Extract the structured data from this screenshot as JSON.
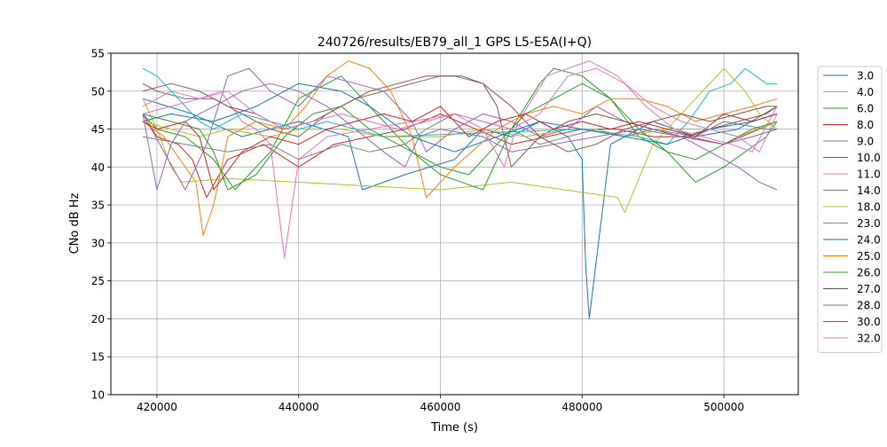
{
  "chart_data": {
    "type": "line",
    "title": "240726/results/EB79_all_1 GPS L5-E5A(I+Q)",
    "xlabel": "Time (s)",
    "ylabel": "CNo dB Hz",
    "xlim": [
      413500,
      510500
    ],
    "ylim": [
      10,
      55
    ],
    "xticks": [
      420000,
      440000,
      460000,
      480000,
      500000
    ],
    "yticks": [
      10,
      15,
      20,
      25,
      30,
      35,
      40,
      45,
      50,
      55
    ],
    "grid": true,
    "legend_position": "right",
    "series": [
      {
        "name": "3.0",
        "color": "#1f77b4",
        "x": [
          418000,
          425000,
          432000,
          440000,
          447000,
          449000,
          455000,
          462000,
          466000,
          470000,
          474000,
          478000,
          480000,
          480500,
          481000,
          484000,
          490000,
          496000,
          502000,
          507500
        ],
        "values": [
          49,
          47,
          44,
          46,
          44,
          37,
          39,
          41,
          45,
          44,
          46,
          44,
          41,
          27,
          20,
          43,
          46,
          44,
          45,
          48
        ]
      },
      {
        "name": "4.0",
        "color": "#bcbd22",
        "x": [
          418000,
          420000,
          422000,
          423500,
          430000,
          460000,
          470000,
          485000,
          486000,
          490000,
          496000,
          500000,
          503000,
          505000,
          507500
        ],
        "values": [
          49,
          45,
          40,
          38,
          38.5,
          37,
          38,
          36,
          34,
          43,
          49,
          53,
          50,
          47,
          45
        ]
      },
      {
        "name": "6.0",
        "color": "#2ca02c",
        "x": [
          418000,
          420000,
          424000,
          428000,
          431000,
          436000,
          440000,
          446000,
          451000,
          456000,
          460000,
          466000,
          470000,
          474000,
          476000,
          480000,
          484000,
          488000,
          492000,
          496000,
          500000,
          506000,
          507500
        ],
        "values": [
          47,
          45,
          44,
          41,
          37,
          42,
          49,
          52,
          47,
          42,
          39,
          37,
          45,
          51,
          53,
          52,
          49,
          44,
          42,
          38,
          40,
          44,
          46
        ]
      },
      {
        "name": "8.0",
        "color": "#d62728",
        "x": [
          418000,
          420000,
          423000,
          425000,
          427000,
          430000,
          435000,
          440000,
          445000,
          450000,
          455000,
          460000,
          465000,
          470000,
          475000,
          480000,
          485000,
          490000,
          495000,
          500000,
          505000,
          507500
        ],
        "values": [
          47,
          44,
          43,
          41,
          36,
          41,
          43,
          40,
          43,
          44,
          45,
          47,
          45,
          43,
          44,
          45,
          45,
          44,
          44,
          43,
          45,
          46
        ]
      },
      {
        "name": "9.0",
        "color": "#9467bd",
        "x": [
          418000,
          421000,
          424000,
          427000,
          430000,
          433000,
          436000,
          440000,
          444000,
          448000,
          452000,
          456000,
          458000,
          462000,
          466000,
          470000,
          474000,
          478000,
          482000,
          486000,
          490000,
          494000,
          498000,
          502000,
          505000,
          507500
        ],
        "values": [
          47,
          42,
          37,
          43,
          52,
          53,
          50,
          48,
          52,
          51,
          50,
          46,
          42,
          45,
          47,
          46,
          44,
          45,
          48,
          46,
          45,
          44,
          42,
          40,
          38,
          37
        ]
      },
      {
        "name": "10.0",
        "color": "#8c564b",
        "x": [
          418000,
          420000,
          424000,
          428000,
          432000,
          436000,
          440000,
          444000,
          448000,
          452000,
          456000,
          460000,
          463000,
          466000,
          468000,
          470000,
          474000,
          478000,
          482000,
          486000,
          490000,
          494000,
          498000,
          502000,
          506000,
          507500
        ],
        "values": [
          51,
          50,
          49,
          49,
          47,
          45,
          44,
          47,
          49,
          50,
          51,
          52,
          52,
          51,
          48,
          40,
          44,
          46,
          47,
          46,
          45,
          44,
          45,
          46,
          47,
          48
        ]
      },
      {
        "name": "11.0",
        "color": "#e377c2",
        "x": [
          418000,
          422000,
          426000,
          429000,
          432000,
          434000,
          436000,
          438000,
          440000,
          444000,
          450000,
          456000,
          462000,
          466000,
          469000,
          471000,
          475000,
          478000,
          481000,
          485000,
          489000,
          493000,
          497000,
          501000,
          504000,
          507500
        ],
        "values": [
          48,
          50,
          49,
          50,
          46,
          45,
          43,
          28,
          41,
          44,
          45,
          46,
          47,
          45,
          40,
          46,
          52,
          53,
          54,
          52,
          48,
          45,
          44,
          43,
          42,
          48
        ]
      },
      {
        "name": "14.0",
        "color": "#7f7f7f",
        "x": [
          418000,
          424000,
          430000,
          436000,
          440000,
          446000,
          450000,
          455000,
          458000,
          462000,
          466000,
          470000,
          474000,
          478000,
          482000,
          486000,
          490000,
          496000,
          500000,
          506000,
          507500
        ],
        "values": [
          44,
          43,
          42,
          43,
          41,
          43,
          42,
          43,
          45,
          47,
          46,
          45,
          43,
          44,
          45,
          44,
          45,
          44,
          46,
          45,
          45
        ]
      },
      {
        "name": "18.0",
        "color": "#bcbd22",
        "x": [
          418000,
          422000,
          426000,
          430000,
          436000,
          440000,
          446000,
          452000,
          460000,
          466000,
          472000,
          478000,
          482000,
          486000,
          492000,
          498000,
          502000,
          507500
        ],
        "values": [
          46,
          45,
          44,
          45,
          44,
          45,
          45,
          44,
          44,
          45,
          44,
          45,
          45,
          44,
          45,
          45,
          44,
          46
        ]
      },
      {
        "name": "23.0",
        "color": "#17becf",
        "x": [
          418000,
          420000,
          422000,
          424000,
          426000,
          428000,
          432000,
          436000,
          440000,
          444000,
          448000,
          452000,
          480000,
          488000,
          492000,
          495000,
          498000,
          501000,
          503000,
          506000,
          507500
        ],
        "values": [
          53,
          52,
          50,
          48,
          46,
          45,
          47,
          46,
          45,
          46,
          45,
          44,
          45,
          44,
          43,
          46,
          50,
          51,
          53,
          51,
          51
        ]
      },
      {
        "name": "24.0",
        "color": "#1f77b4",
        "x": [
          418000,
          422000,
          428000,
          434000,
          440000,
          446000,
          450000,
          456000,
          462000,
          468000,
          474000,
          480000,
          486000,
          492000,
          498000,
          504000,
          507500
        ],
        "values": [
          46,
          47,
          46,
          48,
          51,
          50,
          48,
          44,
          42,
          44,
          46,
          45,
          44,
          43,
          45,
          46,
          47
        ]
      },
      {
        "name": "25.0",
        "color": "#ff7f0e",
        "x": [
          418000,
          421000,
          424000,
          425500,
          426500,
          428000,
          430000,
          434000,
          438000,
          441000,
          444000,
          447000,
          450000,
          453000,
          456000,
          458000,
          462000,
          468000,
          472000,
          476000,
          480000,
          484000,
          488000,
          492000,
          496000,
          500000,
          504000,
          507500
        ],
        "values": [
          46,
          44,
          40,
          38,
          31,
          35,
          44,
          46,
          45,
          48,
          52,
          54,
          53,
          50,
          44,
          36,
          40,
          45,
          47,
          48,
          47,
          49,
          49,
          48,
          46,
          47,
          48,
          49
        ]
      },
      {
        "name": "26.0",
        "color": "#2ca02c",
        "x": [
          418000,
          422000,
          426000,
          428000,
          430000,
          434000,
          438000,
          442000,
          446000,
          450000,
          456000,
          460000,
          464000,
          468000,
          472000,
          476000,
          480000,
          484000,
          488000,
          492000,
          496000,
          500000,
          504000,
          507500
        ],
        "values": [
          47,
          46,
          45,
          42,
          37,
          39,
          44,
          47,
          48,
          45,
          42,
          40,
          39,
          43,
          47,
          49,
          51,
          49,
          45,
          42,
          41,
          43,
          45,
          46
        ]
      },
      {
        "name": "27.0",
        "color": "#d62728",
        "x": [
          418000,
          420000,
          424000,
          426000,
          428000,
          432000,
          436000,
          440000,
          444000,
          448000,
          452000,
          456000,
          460000,
          464000,
          468000,
          472000,
          476000,
          480000,
          484000,
          488000,
          492000,
          496000,
          500000,
          504000,
          507500
        ],
        "values": [
          46,
          45,
          46,
          44,
          37,
          42,
          44,
          43,
          45,
          46,
          47,
          46,
          48,
          44,
          46,
          47,
          45,
          46,
          45,
          46,
          45,
          44,
          47,
          46,
          47
        ]
      },
      {
        "name": "28.0",
        "color": "#9467bd",
        "x": [
          418000,
          419000,
          420000,
          422000,
          424000,
          426000,
          428000,
          432000,
          436000,
          440000,
          444000,
          448000,
          452000,
          455000,
          457000,
          460000,
          466000,
          470000,
          476000,
          482000,
          488000,
          494000,
          500000,
          504000,
          507500
        ],
        "values": [
          47,
          42,
          37,
          43,
          46,
          47,
          48,
          50,
          51,
          50,
          48,
          45,
          42,
          40,
          44,
          45,
          44,
          42,
          43,
          44,
          45,
          44,
          43,
          44,
          45
        ]
      },
      {
        "name": "30.0",
        "color": "#8c564b",
        "x": [
          418000,
          422000,
          426000,
          430000,
          434000,
          438000,
          442000,
          446000,
          450000,
          454000,
          458000,
          462000,
          466000,
          470000,
          474000,
          478000,
          482000,
          486000,
          490000,
          494000,
          498000,
          502000,
          506000,
          507500
        ],
        "values": [
          50,
          51,
          50,
          48,
          47,
          45,
          46,
          48,
          50,
          51,
          52,
          52,
          51,
          48,
          44,
          42,
          43,
          45,
          46,
          47,
          46,
          47,
          48,
          48
        ]
      },
      {
        "name": "32.0",
        "color": "#e377c2",
        "x": [
          418000,
          422000,
          426000,
          430000,
          434000,
          438000,
          442000,
          446000,
          450000,
          454000,
          458000,
          462000,
          466000,
          470000,
          474000,
          478000,
          482000,
          486000,
          490000,
          494000,
          498000,
          502000,
          505000,
          507500
        ],
        "values": [
          47,
          48,
          49,
          50,
          47,
          45,
          46,
          47,
          46,
          45,
          46,
          47,
          46,
          45,
          47,
          52,
          53,
          51,
          48,
          46,
          45,
          44,
          42,
          47
        ]
      }
    ]
  }
}
